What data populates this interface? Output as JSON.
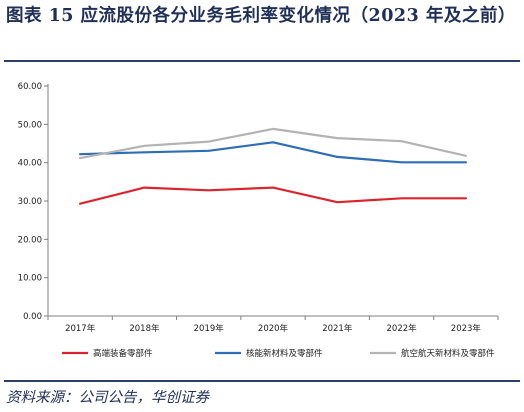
{
  "figure": {
    "title": "图表 15   应流股份各分业务毛利率变化情况（2023 年及之前）",
    "source": "资料来源：公司公告，华创证券"
  },
  "chart_data": {
    "type": "line",
    "title": "",
    "xlabel": "",
    "ylabel": "",
    "categories": [
      "2017年",
      "2018年",
      "2019年",
      "2020年",
      "2021年",
      "2022年",
      "2023年"
    ],
    "yticks": [
      "0.00",
      "10.00",
      "20.00",
      "30.00",
      "40.00",
      "50.00",
      "60.00"
    ],
    "ylim": [
      0,
      60
    ],
    "grid": false,
    "legend_position": "bottom",
    "series": [
      {
        "name": "高端装备零部件",
        "color": "#d9262e",
        "values": [
          29.3,
          33.5,
          32.8,
          33.5,
          29.7,
          30.7,
          30.7
        ]
      },
      {
        "name": "核能新材料及零部件",
        "color": "#2f6db5",
        "values": [
          42.2,
          42.7,
          43.1,
          45.3,
          41.5,
          40.1,
          40.1
        ]
      },
      {
        "name": "航空航天新材料及零部件",
        "color": "#b3b3b3",
        "values": [
          41.2,
          44.4,
          45.5,
          48.8,
          46.4,
          45.6,
          41.8
        ]
      }
    ]
  }
}
